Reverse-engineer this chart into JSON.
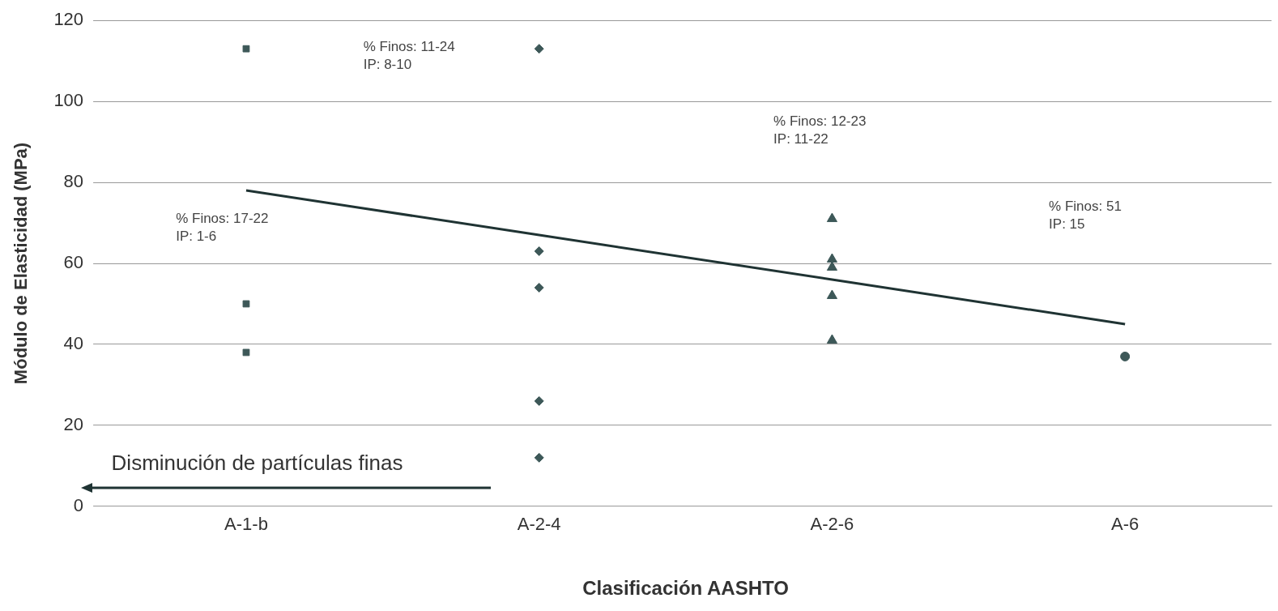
{
  "chart_data": {
    "type": "scatter",
    "xlabel": "Clasificación AASHTO",
    "ylabel": "Módulo de Elasticidad (MPa)",
    "categories": [
      "A-1-b",
      "A-2-4",
      "A-2-6",
      "A-6"
    ],
    "ylim": [
      0,
      120
    ],
    "yticks": [
      0,
      20,
      40,
      60,
      80,
      100,
      120
    ],
    "grid": "y",
    "series": [
      {
        "type": "scatter",
        "marker": "square",
        "color": "#3d5858",
        "x": [
          "A-1-b",
          "A-1-b",
          "A-1-b"
        ],
        "values": [
          113,
          50,
          38
        ]
      },
      {
        "type": "scatter",
        "marker": "diamond",
        "color": "#3d5858",
        "x": [
          "A-2-4",
          "A-2-4",
          "A-2-4",
          "A-2-4",
          "A-2-4"
        ],
        "values": [
          113,
          63,
          54,
          26,
          12
        ]
      },
      {
        "type": "scatter",
        "marker": "triangle",
        "color": "#3d5858",
        "x": [
          "A-2-6",
          "A-2-6",
          "A-2-6",
          "A-2-6",
          "A-2-6"
        ],
        "values": [
          71,
          61,
          59,
          52,
          41
        ]
      },
      {
        "type": "scatter",
        "marker": "circle",
        "color": "#3d5858",
        "x": [
          "A-6"
        ],
        "values": [
          37
        ]
      },
      {
        "type": "line",
        "marker": "none",
        "color": "#1f3333",
        "values": [
          78,
          67,
          56,
          45
        ]
      }
    ],
    "annotations": [
      "% Finos: 17-22\nIP: 1-6",
      "% Finos: 11-24\nIP: 8-10",
      "% Finos: 12-23\nIP: 11-22",
      "% Finos: 51\nIP: 15",
      "Disminución de partículas finas"
    ]
  }
}
